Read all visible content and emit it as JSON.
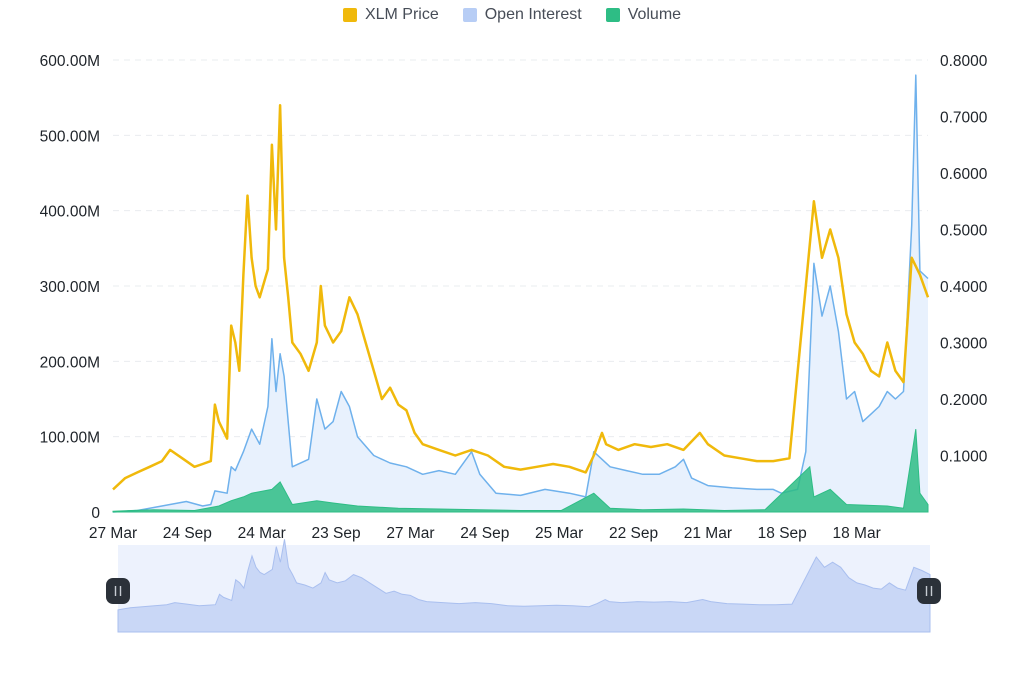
{
  "legend": [
    {
      "label": "XLM Price",
      "color": "#F0B90B"
    },
    {
      "label": "Open Interest",
      "color": "#B7CDF5"
    },
    {
      "label": "Volume",
      "color": "#2EBD85"
    }
  ],
  "chart_data": {
    "type": "line",
    "x_ticks": [
      "27 Mar",
      "24 Sep",
      "24 Mar",
      "23 Sep",
      "27 Mar",
      "24 Sep",
      "25 Mar",
      "22 Sep",
      "21 Mar",
      "18 Sep",
      "18 Mar"
    ],
    "y_left_ticks": [
      "0",
      "100.00M",
      "200.00M",
      "300.00M",
      "400.00M",
      "500.00M",
      "600.00M"
    ],
    "y_left_range": [
      0,
      600000000
    ],
    "y_right_ticks": [
      "0.1000",
      "0.2000",
      "0.3000",
      "0.4000",
      "0.5000",
      "0.6000",
      "0.7000",
      "0.8000"
    ],
    "y_right_range": [
      0,
      0.8
    ],
    "grid": "horizontal-dashed",
    "legend_position": "top-center",
    "x_index_range": [
      0,
      100
    ],
    "series": [
      {
        "name": "XLM Price",
        "axis": "right",
        "color": "#F0B90B",
        "points": [
          [
            0,
            0.04
          ],
          [
            1.5,
            0.06
          ],
          [
            3,
            0.07
          ],
          [
            4.5,
            0.08
          ],
          [
            6,
            0.09
          ],
          [
            7,
            0.11
          ],
          [
            8.5,
            0.095
          ],
          [
            10,
            0.08
          ],
          [
            11,
            0.085
          ],
          [
            12,
            0.09
          ],
          [
            12.5,
            0.19
          ],
          [
            13,
            0.16
          ],
          [
            14,
            0.13
          ],
          [
            14.5,
            0.33
          ],
          [
            15,
            0.3
          ],
          [
            15.5,
            0.25
          ],
          [
            16,
            0.42
          ],
          [
            16.5,
            0.56
          ],
          [
            17,
            0.45
          ],
          [
            17.5,
            0.4
          ],
          [
            18,
            0.38
          ],
          [
            19,
            0.43
          ],
          [
            19.5,
            0.65
          ],
          [
            20,
            0.5
          ],
          [
            20.5,
            0.72
          ],
          [
            21,
            0.45
          ],
          [
            21.5,
            0.38
          ],
          [
            22,
            0.3
          ],
          [
            23,
            0.28
          ],
          [
            24,
            0.25
          ],
          [
            25,
            0.3
          ],
          [
            25.5,
            0.4
          ],
          [
            26,
            0.33
          ],
          [
            27,
            0.3
          ],
          [
            28,
            0.32
          ],
          [
            29,
            0.38
          ],
          [
            30,
            0.35
          ],
          [
            31,
            0.3
          ],
          [
            32,
            0.25
          ],
          [
            33,
            0.2
          ],
          [
            34,
            0.22
          ],
          [
            35,
            0.19
          ],
          [
            36,
            0.18
          ],
          [
            37,
            0.14
          ],
          [
            38,
            0.12
          ],
          [
            40,
            0.11
          ],
          [
            42,
            0.1
          ],
          [
            44,
            0.11
          ],
          [
            46,
            0.1
          ],
          [
            48,
            0.08
          ],
          [
            50,
            0.075
          ],
          [
            52,
            0.08
          ],
          [
            54,
            0.085
          ],
          [
            56,
            0.08
          ],
          [
            58,
            0.07
          ],
          [
            59,
            0.1
          ],
          [
            60,
            0.14
          ],
          [
            60.5,
            0.12
          ],
          [
            62,
            0.11
          ],
          [
            64,
            0.12
          ],
          [
            66,
            0.115
          ],
          [
            68,
            0.12
          ],
          [
            70,
            0.11
          ],
          [
            72,
            0.14
          ],
          [
            73,
            0.12
          ],
          [
            75,
            0.1
          ],
          [
            77,
            0.095
          ],
          [
            79,
            0.09
          ],
          [
            81,
            0.09
          ],
          [
            83,
            0.095
          ],
          [
            86,
            0.55
          ],
          [
            87,
            0.45
          ],
          [
            88,
            0.5
          ],
          [
            89,
            0.45
          ],
          [
            90,
            0.35
          ],
          [
            91,
            0.3
          ],
          [
            92,
            0.28
          ],
          [
            93,
            0.25
          ],
          [
            94,
            0.24
          ],
          [
            95,
            0.3
          ],
          [
            96,
            0.25
          ],
          [
            97,
            0.23
          ],
          [
            98,
            0.45
          ],
          [
            99,
            0.42
          ],
          [
            100,
            0.38
          ]
        ]
      },
      {
        "name": "Open Interest",
        "axis": "left",
        "color": "#6FB1EC",
        "fill": "#E8F1FD",
        "points": [
          [
            0,
            0
          ],
          [
            3,
            2000000
          ],
          [
            6,
            8000000
          ],
          [
            9,
            14000000
          ],
          [
            11,
            8000000
          ],
          [
            12,
            10000000
          ],
          [
            12.5,
            28000000
          ],
          [
            14,
            25000000
          ],
          [
            14.5,
            60000000
          ],
          [
            15,
            55000000
          ],
          [
            16,
            80000000
          ],
          [
            17,
            110000000
          ],
          [
            18,
            90000000
          ],
          [
            19,
            140000000
          ],
          [
            19.5,
            230000000
          ],
          [
            20,
            160000000
          ],
          [
            20.5,
            210000000
          ],
          [
            21,
            180000000
          ],
          [
            22,
            60000000
          ],
          [
            24,
            70000000
          ],
          [
            25,
            150000000
          ],
          [
            26,
            110000000
          ],
          [
            27,
            120000000
          ],
          [
            28,
            160000000
          ],
          [
            29,
            140000000
          ],
          [
            30,
            100000000
          ],
          [
            32,
            75000000
          ],
          [
            34,
            65000000
          ],
          [
            36,
            60000000
          ],
          [
            38,
            50000000
          ],
          [
            40,
            55000000
          ],
          [
            42,
            50000000
          ],
          [
            44,
            80000000
          ],
          [
            45,
            50000000
          ],
          [
            47,
            25000000
          ],
          [
            50,
            22000000
          ],
          [
            53,
            30000000
          ],
          [
            56,
            25000000
          ],
          [
            58,
            20000000
          ],
          [
            59,
            80000000
          ],
          [
            60,
            70000000
          ],
          [
            61,
            60000000
          ],
          [
            63,
            55000000
          ],
          [
            65,
            50000000
          ],
          [
            67,
            50000000
          ],
          [
            69,
            60000000
          ],
          [
            70,
            70000000
          ],
          [
            71,
            45000000
          ],
          [
            73,
            35000000
          ],
          [
            76,
            32000000
          ],
          [
            79,
            30000000
          ],
          [
            81,
            30000000
          ],
          [
            82,
            25000000
          ],
          [
            84,
            30000000
          ],
          [
            85,
            80000000
          ],
          [
            86,
            330000000
          ],
          [
            87,
            260000000
          ],
          [
            88,
            300000000
          ],
          [
            89,
            240000000
          ],
          [
            90,
            150000000
          ],
          [
            91,
            160000000
          ],
          [
            92,
            120000000
          ],
          [
            93,
            130000000
          ],
          [
            94,
            140000000
          ],
          [
            95,
            160000000
          ],
          [
            96,
            150000000
          ],
          [
            97,
            160000000
          ],
          [
            98,
            380000000
          ],
          [
            98.5,
            580000000
          ],
          [
            99,
            320000000
          ],
          [
            100,
            310000000
          ]
        ]
      },
      {
        "name": "Volume",
        "axis": "left",
        "color": "#2EBD85",
        "points": [
          [
            0,
            1000000
          ],
          [
            5,
            3000000
          ],
          [
            10,
            2000000
          ],
          [
            13,
            8000000
          ],
          [
            14.5,
            15000000
          ],
          [
            16,
            20000000
          ],
          [
            17,
            25000000
          ],
          [
            19.5,
            30000000
          ],
          [
            20.5,
            40000000
          ],
          [
            22,
            10000000
          ],
          [
            25,
            15000000
          ],
          [
            27,
            12000000
          ],
          [
            30,
            8000000
          ],
          [
            35,
            5000000
          ],
          [
            40,
            4000000
          ],
          [
            45,
            3000000
          ],
          [
            50,
            2000000
          ],
          [
            55,
            2000000
          ],
          [
            59,
            25000000
          ],
          [
            61,
            5000000
          ],
          [
            65,
            3000000
          ],
          [
            70,
            4000000
          ],
          [
            75,
            2000000
          ],
          [
            80,
            3000000
          ],
          [
            85.5,
            60000000
          ],
          [
            86,
            20000000
          ],
          [
            88,
            30000000
          ],
          [
            90,
            10000000
          ],
          [
            95,
            8000000
          ],
          [
            97,
            5000000
          ],
          [
            98.5,
            110000000
          ],
          [
            99,
            25000000
          ],
          [
            100,
            10000000
          ]
        ]
      }
    ]
  },
  "navigator": {
    "fill": "#C9D7F6",
    "background": "#EDF2FD",
    "handle_left_icon": "pause-handle-icon",
    "handle_right_icon": "pause-handle-icon"
  }
}
